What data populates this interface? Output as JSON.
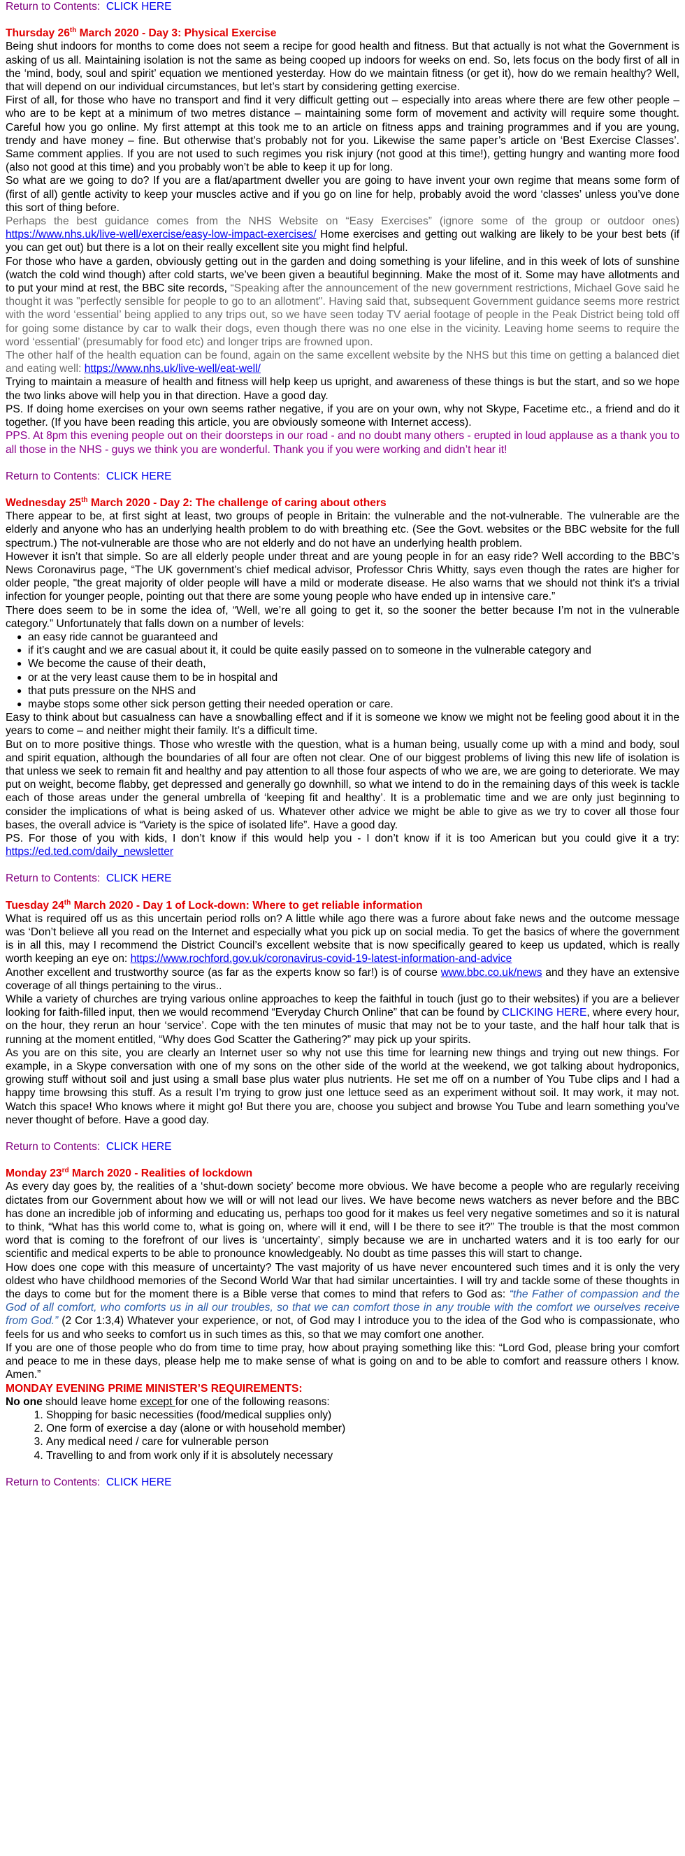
{
  "sections": [
    {
      "return_label": "Return to Contents:",
      "return_link": "CLICK HERE",
      "heading": [
        "Thursday 26",
        {
          "sup": "th"
        },
        " March 2020 - Day 3: Physical Exercise"
      ],
      "blocks": [
        {
          "p": [
            "Being shut indoors for months to come does not seem a recipe for good health and fitness. But that actually is not what the Government is asking of us all. Maintaining isolation is not the same as being cooped up indoors for weeks on end. So, lets focus on the body first of all in the ‘mind, body, soul and spirit’ equation we mentioned yesterday. How do we maintain fitness (or get it), how do we remain healthy? Well, that will depend on our individual circumstances, but let’s start by considering getting exercise."
          ]
        },
        {
          "p": [
            "First of all, for those who have no transport and find it very difficult getting out – especially into areas where there are few other people – who are to be kept at a minimum of two metres distance – maintaining some form of movement and activity will require some thought. Careful how you go online. My first attempt at this took me to an article on fitness apps and training programmes and if you are young, trendy and have money – fine. But otherwise that’s probably not for you. Likewise the same paper’s article on ‘Best Exercise Classes’. Same comment applies. If you are not used to such regimes you risk injury (not good at this time!), getting hungry and wanting more food (also not good at this time) and you probably won’t be able to keep it up for long."
          ]
        },
        {
          "p": [
            "So what are we going to do?  If you are a flat/apartment dweller you are going to have invent your own regime that means some form of (first of all) gentle activity to keep your muscles active and if you go on line for help, probably avoid the word ‘classes’ unless you’ve done this sort of thing before."
          ]
        },
        {
          "p": [
            {
              "grey": "Perhaps the best guidance comes from the NHS Website on “Easy Exercises” (ignore some of the group or outdoor ones) "
            },
            {
              "link": "https://www.nhs.uk/live-well/exercise/easy-low-impact-exercises/"
            },
            "  Home exercises and getting out walking are likely to be your best bets (if you can get out) but there is a lot on their really excellent site you might find helpful."
          ]
        },
        {
          "p": [
            "For those who have a garden, obviously getting out in the garden and doing something is your lifeline, and in this week of lots of sunshine (watch the cold wind though) after cold starts, we’ve been given a beautiful beginning. Make the most of it.  Some may have allotments and to put your mind at rest, the BBC site records, ",
            {
              "grey": "“Speaking after the announcement of the new government restrictions, Michael Gove said he thought it was \"perfectly sensible for people to go to an allotment\". Having said that, subsequent Government guidance seems more restrict with the word ‘essential’ being applied to any trips out, so we have seen today TV aerial footage of people in the Peak District being told off for going some distance by car to walk their dogs, even though there was no one else in the vicinity.  Leaving home seems to require the word ‘essential’ (presumably for food etc) and longer trips are frowned upon."
            }
          ]
        },
        {
          "p": [
            {
              "grey": "The other half of the health equation can be found, again on the same excellent website by the NHS but this time on getting a balanced diet and eating well:  "
            },
            {
              "link": "https://www.nhs.uk/live-well/eat-well/"
            }
          ]
        },
        {
          "p": [
            "Trying to maintain a measure of health and fitness will help keep us upright, and awareness of these things is but the start, and so we hope the two links above will help you in that direction. Have a good day."
          ]
        },
        {
          "p": [
            "PS. If doing home exercises on your own seems rather negative, if you are on your own, why not Skype, Facetime etc., a friend and do it together. (If you have been reading this article, you are obviously someone with Internet access)."
          ]
        },
        {
          "p": [
            {
              "purple": "PPS. At 8pm this evening people out on their doorsteps in our road - and no doubt many others - erupted in loud applause as a thank you to all those in the NHS - guys we think you are wonderful. Thank you if you were working and didn’t hear it!"
            }
          ]
        }
      ]
    },
    {
      "return_label": "Return to Contents:",
      "return_link": "CLICK HERE",
      "heading": [
        "Wednesday 25",
        {
          "sup": "th"
        },
        "  March 2020 - Day 2: The challenge of caring about others"
      ],
      "blocks": [
        {
          "p": [
            "There appear to be, at first sight at least, two groups of people in Britain: the vulnerable and the not-vulnerable.  The vulnerable are the elderly and anyone who has an underlying health problem to do with breathing etc. (See the Govt. websites or the BBC website for the full spectrum.) The not-vulnerable are those who are not elderly and do not have an underlying health problem."
          ]
        },
        {
          "p": [
            "However it isn’t that simple. So are all elderly people under threat and are young people in for an easy ride? Well according to the BBC’s News Coronavirus page, “The UK government's chief medical advisor, Professor Chris Whitty, says even though the rates are higher for older people, \"the great majority of older people will have a mild or moderate disease. He also warns that we should not think it's a trivial infection for younger people, pointing out that there are some young people who have ended up in intensive care.”"
          ]
        },
        {
          "p": [
            "There does seem to be in some the idea of, “Well, we’re all going to get it, so the sooner the better because I’m not in the vulnerable category.” Unfortunately that falls down on a number of levels:"
          ]
        },
        {
          "ul": [
            "an easy ride cannot be guaranteed and",
            "if it’s caught and we are casual about it, it could be quite easily passed on to someone in the vulnerable category and",
            "We become the cause of their death,",
            "or at the very least cause them to be in hospital and",
            "that puts pressure on the NHS and",
            "maybe stops some other sick person getting their needed operation or care."
          ]
        },
        {
          "p": [
            "Easy to think about but casualness can have a snowballing effect and if it is someone we know we might not be feeling good about it in the years to come – and neither might their family. It’s a difficult time."
          ]
        },
        {
          "p": [
            "But on to more positive things. Those who wrestle with the question, what is a human being, usually come up with a mind and body, soul and spirit equation, although the boundaries of all four are often not clear. One of our biggest problems of living this new life of isolation is that unless we seek to remain fit and healthy and pay attention to all those four aspects of who we are, we are going to deteriorate. We may put on weight, become flabby, get depressed and generally go downhill, so what we intend to do in the remaining days of this week is tackle each of those areas under the general umbrella of ‘keeping fit and healthy’. It is a problematic time and we are only just beginning to consider the implications of what is being asked of us.   Whatever other advice we might be able to give as we try to cover all those four bases, the overall advice is “Variety is the spice of isolated life”. Have a good day."
          ]
        },
        {
          "p": [
            "PS. For those of you with kids, I don’t know if this would help you - I don’t know if it is too American but you could give it a try: ",
            {
              "link": "https://ed.ted.com/daily_newsletter"
            }
          ]
        }
      ]
    },
    {
      "return_label": "Return to Contents:",
      "return_link": "CLICK HERE",
      "heading": [
        "Tuesday 24",
        {
          "sup": "th"
        },
        "  March 2020 - Day 1 of Lock-down: Where to get reliable information"
      ],
      "blocks": [
        {
          "p": [
            "What is required off us as this uncertain period rolls on? A little while ago there was a furore about fake news and the outcome message was ‘Don’t believe all you read on the Internet and especially what you pick up on social media. To get the basics of where the government is in all this, may I recommend the District Council’s excellent website that is now specifically geared to keep us updated, which is really worth keeping an eye on:  ",
            {
              "link": "https://www.rochford.gov.uk/coronavirus-covid-19-latest-information-and-advice"
            }
          ]
        },
        {
          "p": [
            "Another excellent and trustworthy source (as far as the experts know so far!) is of course ",
            {
              "link": "www.bbc.co.uk/news"
            },
            "  and they have an extensive coverage of all things pertaining to the virus.."
          ]
        },
        {
          "p": [
            "While a variety of churches are trying various online approaches to keep the faithful in touch (just go to their websites) if you are a believer looking for faith-filled input, then we would recommend “Everyday Church Online” that can be found by ",
            {
              "blue": "CLICKING HERE"
            },
            ", where every hour, on the hour, they rerun an hour ‘service’. Cope with the ten minutes of music that may not be to your taste, and the half hour talk that is running at the moment entitled, “Why does God Scatter the Gathering?” may pick up your spirits."
          ]
        },
        {
          "p": [
            "As you are on this site, you are clearly an Internet user so why not use this time for learning new things and trying out new things. For example, in a Skype conversation with one of my sons on the other side of the world at the weekend, we got talking about hydroponics, growing stuff without soil and just using a small base plus water plus nutrients. He set me off on a number of You Tube clips and I had a happy time browsing this stuff. As a result I’m trying to grow just one lettuce seed as an experiment without soil. It may work, it may not. Watch this space!  Who knows where it might go! But there you are, choose you subject and browse You Tube and learn something you’ve never thought of before. Have a good day."
          ]
        }
      ]
    },
    {
      "return_label": "Return to Contents:",
      "return_link": "CLICK HERE",
      "heading": [
        "Monday 23",
        {
          "sup": "rd"
        },
        " March 2020 - Realities of lockdown"
      ],
      "blocks": [
        {
          "p": [
            "As every day goes by, the realities of a ‘shut-down society’ become more obvious. We have become a people who are regularly receiving dictates from our Government about how we will or will not lead our lives.  We have become news watchers as never before and the BBC has done an incredible job of informing and educating us, perhaps too good for it makes us feel very negative sometimes and so it is natural to think, “What has this world come to, what is going on, where will it end, will I be there to see it?”  The trouble is that the most common word that is coming to the forefront of our lives is ‘uncertainty’, simply because we are in uncharted waters and it is too early for our scientific and medical experts to be able to pronounce knowledgeably. No doubt as time passes this will start to change."
          ]
        },
        {
          "p": [
            "How does one cope with this measure of uncertainty? The vast majority of us have never encountered such times and it is only the very oldest who have childhood memories of the Second World War that had similar uncertainties. I will try and tackle some of these thoughts in the days to come but for the moment there is a Bible verse that comes to mind that refers to God as: ",
            {
              "quote": "“the Father of compassion and the God of all comfort, who comforts us in all our troubles, so that we can comfort those in any trouble with the comfort we ourselves receive from God.”"
            },
            " (2 Cor 1:3,4) Whatever your experience, or not, of God may I introduce you to the idea of the God who is compassionate, who feels for us and who seeks to comfort us in such times as this, so that we may comfort one another."
          ]
        },
        {
          "p": [
            "If you are one of those people who do from time to time pray, how about praying something like this: “Lord God, please bring your comfort and peace to me in these days, please help me to make sense of what is going on and to be able to comfort and reassure others I know. Amen.”"
          ]
        },
        {
          "p": [
            {
              "red": "MONDAY EVENING PRIME MINISTER’S  REQUIREMENTS:"
            }
          ]
        },
        {
          "p": [
            {
              "bold": "No one"
            },
            " should leave home ",
            {
              "underline": "except "
            },
            "for one of the following reasons:"
          ]
        },
        {
          "ol": [
            "Shopping for basic necessities (food/medical supplies only)",
            "One form of exercise a day (alone or with household member)",
            "Any medical need / care for vulnerable person",
            "Travelling to and from work only if it is absolutely necessary"
          ]
        }
      ]
    }
  ],
  "footer": {
    "return_label": "Return to Contents:",
    "return_link": "CLICK HERE"
  }
}
